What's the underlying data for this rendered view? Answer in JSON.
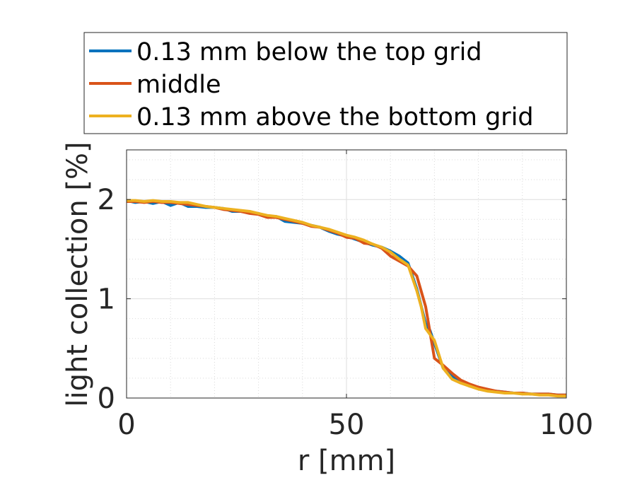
{
  "chart_data": {
    "type": "line",
    "xlabel": "r [mm]",
    "ylabel": "light collection [%]",
    "xlim": [
      0,
      100
    ],
    "ylim": [
      0,
      2.5
    ],
    "xticks": [
      0,
      50,
      100
    ],
    "yticks": [
      0,
      1,
      2
    ],
    "grid": true,
    "minor_grid": true,
    "legend_position": "top",
    "series": [
      {
        "name": "0.13 mm below the top grid",
        "color": "#0072BD",
        "x": [
          0,
          2,
          4,
          6,
          8,
          10,
          12,
          14,
          16,
          18,
          20,
          22,
          24,
          26,
          28,
          30,
          32,
          34,
          36,
          38,
          40,
          42,
          44,
          46,
          48,
          50,
          52,
          54,
          56,
          58,
          60,
          62,
          64,
          66,
          68,
          69,
          70,
          72,
          74,
          76,
          78,
          80,
          82,
          84,
          86,
          88,
          90,
          92,
          94,
          96,
          98,
          100
        ],
        "y": [
          1.99,
          1.97,
          1.98,
          1.96,
          1.98,
          1.94,
          1.97,
          1.93,
          1.93,
          1.92,
          1.92,
          1.91,
          1.88,
          1.88,
          1.87,
          1.86,
          1.83,
          1.83,
          1.78,
          1.77,
          1.76,
          1.74,
          1.72,
          1.68,
          1.65,
          1.63,
          1.6,
          1.57,
          1.54,
          1.52,
          1.48,
          1.43,
          1.36,
          1.1,
          0.75,
          0.68,
          0.55,
          0.3,
          0.22,
          0.16,
          0.12,
          0.1,
          0.08,
          0.07,
          0.06,
          0.05,
          0.05,
          0.04,
          0.04,
          0.04,
          0.03,
          0.03
        ]
      },
      {
        "name": "middle",
        "color": "#D95319",
        "x": [
          0,
          2,
          4,
          6,
          8,
          10,
          12,
          14,
          16,
          18,
          20,
          22,
          24,
          26,
          28,
          30,
          32,
          34,
          36,
          38,
          40,
          42,
          44,
          46,
          48,
          50,
          52,
          54,
          56,
          58,
          60,
          62,
          64,
          66,
          68,
          70,
          72,
          74,
          76,
          78,
          80,
          82,
          84,
          86,
          88,
          90,
          92,
          94,
          96,
          98,
          100
        ],
        "y": [
          1.98,
          1.98,
          1.97,
          1.98,
          1.97,
          1.97,
          1.96,
          1.95,
          1.94,
          1.93,
          1.92,
          1.9,
          1.89,
          1.88,
          1.86,
          1.85,
          1.82,
          1.82,
          1.8,
          1.78,
          1.76,
          1.73,
          1.72,
          1.69,
          1.66,
          1.62,
          1.61,
          1.56,
          1.55,
          1.51,
          1.43,
          1.38,
          1.33,
          1.23,
          0.92,
          0.4,
          0.33,
          0.25,
          0.18,
          0.14,
          0.11,
          0.09,
          0.07,
          0.06,
          0.05,
          0.05,
          0.04,
          0.04,
          0.04,
          0.03,
          0.03
        ]
      },
      {
        "name": "0.13 mm above the bottom grid",
        "color": "#EDB120",
        "x": [
          0,
          2,
          4,
          6,
          8,
          10,
          12,
          14,
          16,
          18,
          20,
          22,
          24,
          26,
          28,
          30,
          32,
          34,
          36,
          38,
          40,
          42,
          44,
          46,
          48,
          50,
          52,
          54,
          56,
          58,
          60,
          62,
          64,
          66,
          67,
          68,
          70,
          72,
          74,
          76,
          78,
          80,
          82,
          84,
          86,
          88,
          90,
          92,
          94,
          96,
          98,
          100
        ],
        "y": [
          1.99,
          1.99,
          1.98,
          1.99,
          1.98,
          1.98,
          1.97,
          1.97,
          1.95,
          1.93,
          1.92,
          1.91,
          1.9,
          1.89,
          1.88,
          1.86,
          1.84,
          1.83,
          1.81,
          1.79,
          1.77,
          1.74,
          1.72,
          1.7,
          1.67,
          1.64,
          1.62,
          1.59,
          1.55,
          1.52,
          1.47,
          1.4,
          1.34,
          1.08,
          0.92,
          0.7,
          0.58,
          0.3,
          0.19,
          0.15,
          0.12,
          0.09,
          0.07,
          0.06,
          0.05,
          0.05,
          0.04,
          0.04,
          0.03,
          0.03,
          0.02,
          0.02
        ]
      }
    ]
  }
}
